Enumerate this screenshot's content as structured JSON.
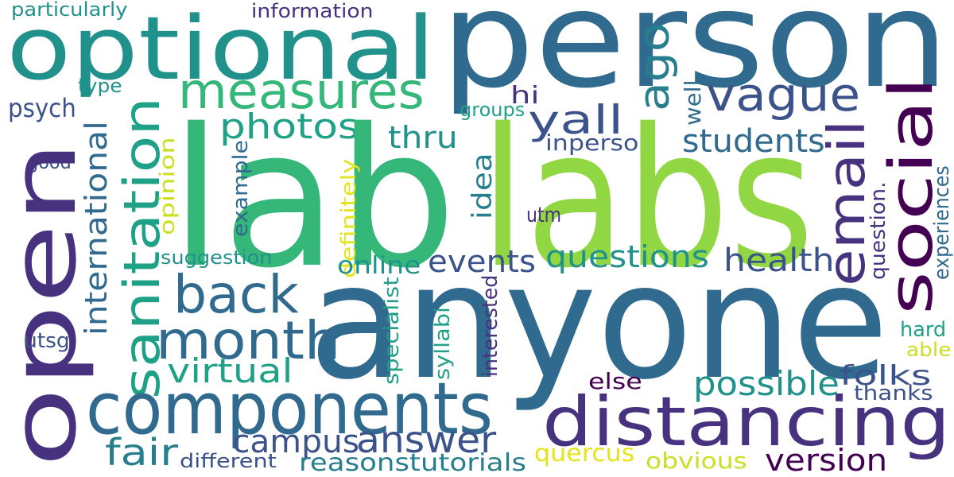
{
  "palette": {
    "deep_purple": "#46327e",
    "indigo": "#3b528b",
    "steel_blue": "#306a8e",
    "teal_blue": "#277f8e",
    "teal": "#21918c",
    "sea_green": "#1fa187",
    "green": "#35b779",
    "light_green": "#5ec962",
    "lime": "#90d743",
    "yellow_green": "#c8e020",
    "yellow": "#e4e41a",
    "dark_purple": "#440154"
  },
  "words": [
    {
      "key": "particularly",
      "text": "particularly",
      "color": "teal"
    },
    {
      "key": "information",
      "text": "information",
      "color": "deep_purple"
    },
    {
      "key": "optional",
      "text": "optional",
      "color": "teal"
    },
    {
      "key": "person",
      "text": "person",
      "color": "steel_blue"
    },
    {
      "key": "measures",
      "text": "measures",
      "color": "green"
    },
    {
      "key": "ago",
      "text": "ago",
      "color": "teal_blue"
    },
    {
      "key": "vague",
      "text": "vague",
      "color": "indigo"
    },
    {
      "key": "hi",
      "text": "hi",
      "color": "deep_purple"
    },
    {
      "key": "type",
      "text": "type",
      "color": "teal"
    },
    {
      "key": "psych",
      "text": "psych",
      "color": "indigo"
    },
    {
      "key": "groups",
      "text": "groups",
      "color": "sea_green"
    },
    {
      "key": "well",
      "text": "well",
      "color": "steel_blue"
    },
    {
      "key": "social",
      "text": "social",
      "color": "dark_purple"
    },
    {
      "key": "yall",
      "text": "yall",
      "color": "indigo"
    },
    {
      "key": "photos",
      "text": "photos",
      "color": "sea_green"
    },
    {
      "key": "thru",
      "text": "thru",
      "color": "teal"
    },
    {
      "key": "inperson",
      "text": "inperson",
      "color": "indigo"
    },
    {
      "key": "students",
      "text": "students",
      "color": "steel_blue"
    },
    {
      "key": "email",
      "text": "email",
      "color": "deep_purple"
    },
    {
      "key": "lab",
      "text": "lab",
      "color": "green"
    },
    {
      "key": "labs",
      "text": "labs",
      "color": "lime"
    },
    {
      "key": "good",
      "text": "good",
      "color": "indigo"
    },
    {
      "key": "sanitation",
      "text": "sanitation",
      "color": "sea_green"
    },
    {
      "key": "international",
      "text": "international",
      "color": "steel_blue"
    },
    {
      "key": "opinion",
      "text": "opinion",
      "color": "yellow_green"
    },
    {
      "key": "example",
      "text": "example",
      "color": "steel_blue"
    },
    {
      "key": "definitely",
      "text": "definitely",
      "color": "yellow"
    },
    {
      "key": "idea",
      "text": "idea",
      "color": "teal_blue"
    },
    {
      "key": "utm",
      "text": "utm",
      "color": "deep_purple"
    },
    {
      "key": "open",
      "text": "open",
      "color": "deep_purple"
    },
    {
      "key": "suggestion",
      "text": "suggestion",
      "color": "teal"
    },
    {
      "key": "events",
      "text": "events",
      "color": "indigo"
    },
    {
      "key": "questions",
      "text": "questions",
      "color": "teal"
    },
    {
      "key": "health",
      "text": "health",
      "color": "indigo"
    },
    {
      "key": "online",
      "text": "online",
      "color": "teal"
    },
    {
      "key": "question",
      "text": "question.",
      "color": "deep_purple"
    },
    {
      "key": "experiences",
      "text": "experiences",
      "color": "steel_blue"
    },
    {
      "key": "back",
      "text": "back",
      "color": "steel_blue"
    },
    {
      "key": "anyone",
      "text": "anyone",
      "color": "steel_blue"
    },
    {
      "key": "month",
      "text": "month",
      "color": "steel_blue"
    },
    {
      "key": "specialist",
      "text": "specialist",
      "color": "sea_green"
    },
    {
      "key": "syllabi",
      "text": "syllabi",
      "color": "sea_green"
    },
    {
      "key": "interested",
      "text": "interested",
      "color": "deep_purple"
    },
    {
      "key": "utsg",
      "text": "utsg",
      "color": "indigo"
    },
    {
      "key": "hard",
      "text": "hard",
      "color": "sea_green"
    },
    {
      "key": "able",
      "text": "able",
      "color": "yellow_green"
    },
    {
      "key": "virtual",
      "text": "virtual",
      "color": "sea_green"
    },
    {
      "key": "possible",
      "text": "possible",
      "color": "teal"
    },
    {
      "key": "folks",
      "text": "folks",
      "color": "indigo"
    },
    {
      "key": "else",
      "text": "else",
      "color": "dark_purple"
    },
    {
      "key": "thanks",
      "text": "thanks",
      "color": "indigo"
    },
    {
      "key": "components",
      "text": "components",
      "color": "steel_blue"
    },
    {
      "key": "distancing",
      "text": "distancing",
      "color": "deep_purple"
    },
    {
      "key": "campus",
      "text": "campus",
      "color": "indigo"
    },
    {
      "key": "answer",
      "text": "answer",
      "color": "indigo"
    },
    {
      "key": "fair",
      "text": "fair",
      "color": "teal_blue"
    },
    {
      "key": "quercus",
      "text": "quercus",
      "color": "yellow"
    },
    {
      "key": "version",
      "text": "version",
      "color": "dark_purple"
    },
    {
      "key": "different",
      "text": "different",
      "color": "indigo"
    },
    {
      "key": "reasonstutorials",
      "text": "reasonstutorials",
      "color": "teal_blue"
    },
    {
      "key": "obvious",
      "text": "obvious",
      "color": "yellow_green"
    }
  ]
}
